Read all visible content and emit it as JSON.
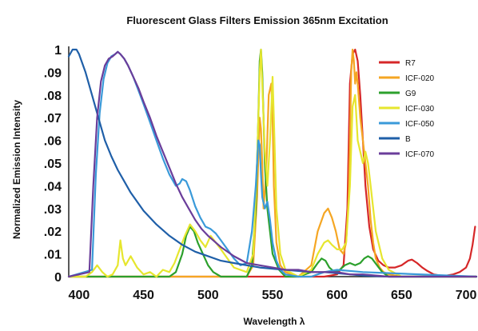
{
  "chart_data": {
    "type": "line",
    "title": "Fluorescent Glass Filters Emission 365nm Excitation",
    "xlabel": "Wavelength λ",
    "ylabel": "Normalized Emission Intensity",
    "xlim": [
      392,
      708
    ],
    "ylim": [
      0,
      1
    ],
    "x_ticks": [
      "400",
      "450",
      "500",
      "550",
      "600",
      "650",
      "700"
    ],
    "y_ticks": [
      "0",
      ".01",
      ".02",
      ".03",
      ".04",
      ".05",
      ".06",
      ".07",
      ".08",
      ".09",
      "1"
    ],
    "grid": false,
    "legend_position": "top-right",
    "series": [
      {
        "name": "R7",
        "color": "#d62728",
        "x": [
          392,
          590,
          600,
          605,
          608,
          610,
          612,
          614,
          616,
          618,
          620,
          622,
          625,
          628,
          632,
          636,
          640,
          645,
          650,
          655,
          658,
          662,
          666,
          670,
          675,
          680,
          685,
          690,
          695,
          700,
          703,
          705,
          707
        ],
        "y": [
          0,
          0,
          0.01,
          0.05,
          0.3,
          0.85,
          0.98,
          1.0,
          0.95,
          0.8,
          0.6,
          0.4,
          0.22,
          0.12,
          0.07,
          0.05,
          0.04,
          0.04,
          0.05,
          0.07,
          0.075,
          0.06,
          0.04,
          0.025,
          0.01,
          0.005,
          0.005,
          0.01,
          0.02,
          0.04,
          0.08,
          0.14,
          0.22
        ]
      },
      {
        "name": "ICF-020",
        "color": "#f5a623",
        "x": [
          392,
          530,
          535,
          538,
          540,
          541,
          542,
          543,
          545,
          547,
          549,
          550,
          551,
          553,
          556,
          560,
          570,
          580,
          585,
          590,
          593,
          596,
          599,
          602,
          605,
          607,
          609,
          610,
          611,
          612,
          613,
          614,
          615,
          616,
          618,
          620,
          622,
          624,
          626,
          628,
          630,
          633,
          636,
          640,
          650,
          708
        ],
        "y": [
          0,
          0,
          0.05,
          0.35,
          0.7,
          0.65,
          0.5,
          0.3,
          0.45,
          0.8,
          0.85,
          0.7,
          0.4,
          0.15,
          0.05,
          0.02,
          0.0,
          0.05,
          0.2,
          0.28,
          0.3,
          0.26,
          0.2,
          0.12,
          0.1,
          0.15,
          0.35,
          0.6,
          0.9,
          1.0,
          0.95,
          0.85,
          0.9,
          0.85,
          0.7,
          0.6,
          0.5,
          0.4,
          0.25,
          0.15,
          0.08,
          0.04,
          0.02,
          0.01,
          0.0,
          0.0
        ]
      },
      {
        "name": "G9",
        "color": "#2ca02c",
        "x": [
          392,
          470,
          475,
          480,
          483,
          486,
          489,
          492,
          496,
          500,
          504,
          510,
          520,
          530,
          534,
          537,
          539,
          540,
          541,
          542,
          543,
          544,
          546,
          550,
          555,
          560,
          570,
          580,
          585,
          588,
          591,
          594,
          598,
          602,
          606,
          610,
          614,
          618,
          621,
          624,
          627,
          631,
          635,
          640,
          708
        ],
        "y": [
          0,
          0,
          0.02,
          0.1,
          0.18,
          0.22,
          0.2,
          0.15,
          0.1,
          0.05,
          0.02,
          0.0,
          0.0,
          0.0,
          0.05,
          0.3,
          0.7,
          0.95,
          1.0,
          0.9,
          0.7,
          0.5,
          0.3,
          0.1,
          0.03,
          0.0,
          0.0,
          0.02,
          0.06,
          0.08,
          0.07,
          0.04,
          0.02,
          0.03,
          0.05,
          0.06,
          0.05,
          0.06,
          0.08,
          0.09,
          0.08,
          0.05,
          0.02,
          0.0,
          0.0
        ]
      },
      {
        "name": "ICF-030",
        "color": "#e6e62e",
        "x": [
          392,
          405,
          410,
          414,
          418,
          422,
          426,
          430,
          432,
          434,
          436,
          440,
          445,
          450,
          455,
          460,
          465,
          470,
          474,
          478,
          482,
          486,
          490,
          494,
          498,
          502,
          506,
          510,
          515,
          520,
          530,
          535,
          538,
          540,
          541,
          542,
          544,
          546,
          548,
          550,
          551,
          553,
          556,
          560,
          570,
          580,
          585,
          590,
          593,
          596,
          600,
          604,
          607,
          610,
          612,
          614,
          616,
          618,
          620,
          622,
          624,
          626,
          628,
          630,
          635,
          640,
          650,
          708
        ],
        "y": [
          0,
          0,
          0.02,
          0.05,
          0.02,
          0.0,
          0.01,
          0.05,
          0.16,
          0.08,
          0.05,
          0.09,
          0.04,
          0.01,
          0.02,
          0.0,
          0.03,
          0.02,
          0.06,
          0.12,
          0.18,
          0.23,
          0.2,
          0.16,
          0.13,
          0.18,
          0.15,
          0.12,
          0.08,
          0.04,
          0.02,
          0.1,
          0.5,
          0.9,
          1.0,
          0.85,
          0.55,
          0.4,
          0.6,
          0.88,
          0.7,
          0.3,
          0.1,
          0.03,
          0.0,
          0.03,
          0.1,
          0.15,
          0.16,
          0.14,
          0.12,
          0.12,
          0.15,
          0.4,
          0.75,
          0.8,
          0.6,
          0.55,
          0.5,
          0.55,
          0.5,
          0.4,
          0.3,
          0.2,
          0.08,
          0.03,
          0.0,
          0.0
        ]
      },
      {
        "name": "ICF-050",
        "color": "#3a9ad9",
        "x": [
          392,
          410,
          413,
          416,
          419,
          422,
          425,
          428,
          430,
          432,
          435,
          438,
          442,
          446,
          450,
          455,
          460,
          465,
          470,
          475,
          478,
          480,
          483,
          486,
          490,
          494,
          498,
          502,
          506,
          510,
          515,
          520,
          525,
          530,
          534,
          537,
          539,
          540,
          541,
          542,
          544,
          546,
          548,
          550,
          553,
          556,
          560,
          570,
          580,
          590,
          600,
          620,
          708
        ],
        "y": [
          0,
          0.03,
          0.45,
          0.72,
          0.87,
          0.94,
          0.97,
          0.98,
          0.99,
          0.98,
          0.96,
          0.93,
          0.88,
          0.82,
          0.76,
          0.68,
          0.6,
          0.52,
          0.45,
          0.4,
          0.41,
          0.43,
          0.42,
          0.38,
          0.31,
          0.26,
          0.22,
          0.21,
          0.19,
          0.16,
          0.12,
          0.08,
          0.05,
          0.06,
          0.2,
          0.4,
          0.6,
          0.58,
          0.45,
          0.35,
          0.3,
          0.33,
          0.25,
          0.15,
          0.07,
          0.03,
          0.01,
          0.0,
          0.0,
          0.02,
          0.03,
          0.02,
          0.0
        ]
      },
      {
        "name": "B",
        "color": "#1f5fa8",
        "x": [
          392,
          395,
          398,
          400,
          405,
          410,
          415,
          420,
          425,
          430,
          435,
          440,
          450,
          460,
          470,
          480,
          490,
          500,
          510,
          520,
          530,
          540,
          550,
          560,
          570,
          580,
          590,
          600,
          610,
          620,
          640,
          660,
          680,
          708
        ],
        "y": [
          0.97,
          1.0,
          1.0,
          0.98,
          0.9,
          0.8,
          0.7,
          0.6,
          0.53,
          0.47,
          0.42,
          0.37,
          0.29,
          0.23,
          0.18,
          0.14,
          0.11,
          0.09,
          0.07,
          0.06,
          0.05,
          0.04,
          0.035,
          0.03,
          0.025,
          0.02,
          0.02,
          0.015,
          0.01,
          0.005,
          0.0,
          0.0,
          0.0,
          0.0
        ]
      },
      {
        "name": "ICF-070",
        "color": "#6a3d9a",
        "x": [
          392,
          408,
          411,
          414,
          417,
          420,
          423,
          426,
          428,
          430,
          432,
          435,
          438,
          442,
          446,
          450,
          455,
          460,
          465,
          470,
          475,
          480,
          485,
          490,
          495,
          500,
          510,
          520,
          530,
          540,
          550,
          560,
          570,
          580,
          590,
          600,
          610,
          620,
          630,
          640,
          650,
          660,
          708
        ],
        "y": [
          0,
          0.02,
          0.4,
          0.7,
          0.86,
          0.93,
          0.96,
          0.97,
          0.98,
          0.99,
          0.98,
          0.96,
          0.93,
          0.88,
          0.83,
          0.77,
          0.7,
          0.62,
          0.55,
          0.48,
          0.41,
          0.35,
          0.3,
          0.25,
          0.21,
          0.18,
          0.13,
          0.09,
          0.06,
          0.05,
          0.04,
          0.03,
          0.03,
          0.02,
          0.02,
          0.02,
          0.01,
          0.01,
          0.005,
          0.0,
          0.0,
          0.0,
          0.0
        ]
      }
    ]
  }
}
